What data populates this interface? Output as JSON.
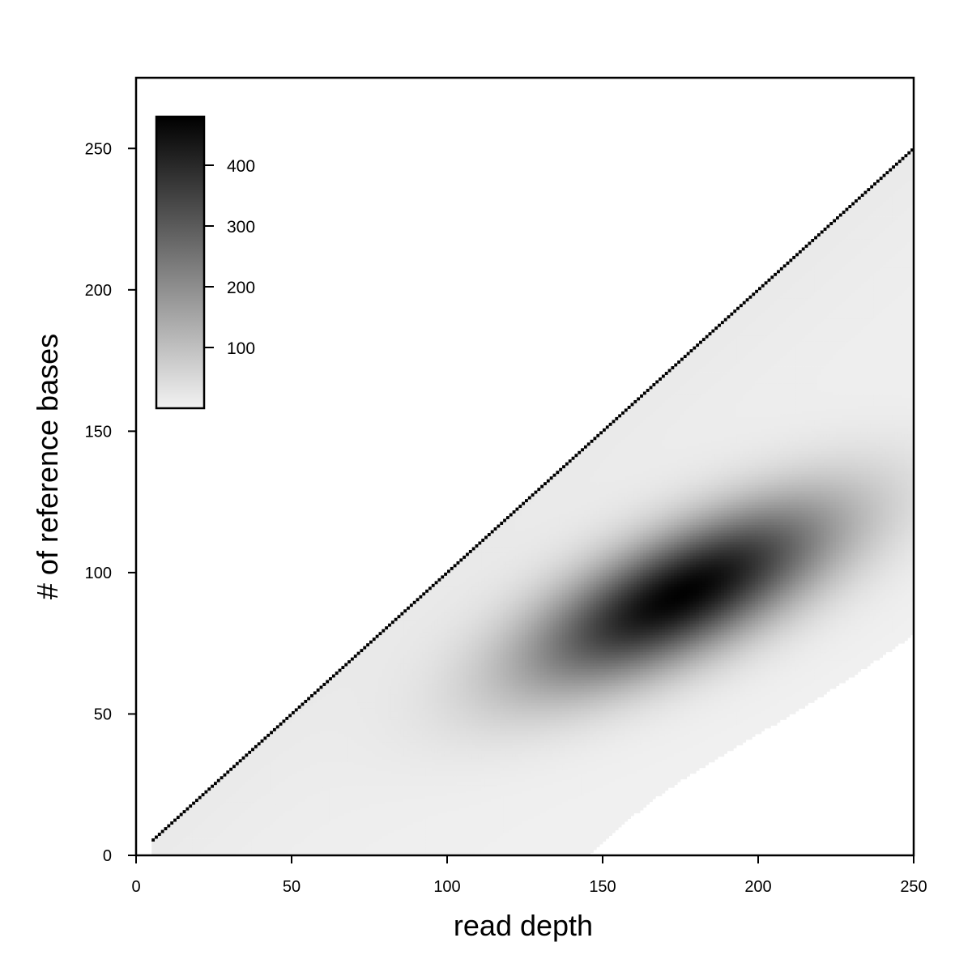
{
  "chart_data": {
    "type": "heatmap",
    "title": "",
    "xlabel": "read depth",
    "ylabel": "# of reference bases",
    "xlim": [
      0,
      250
    ],
    "ylim": [
      0,
      275
    ],
    "xticks": [
      0,
      50,
      100,
      150,
      200,
      250
    ],
    "yticks": [
      0,
      50,
      100,
      150,
      200,
      250
    ],
    "colormap": "greys",
    "color_min": "#f2f2f2",
    "color_max": "#000000",
    "colorbar": {
      "position": "top-left",
      "range": [
        0,
        480
      ],
      "ticks": [
        100,
        200,
        300,
        400
      ]
    },
    "features": [
      {
        "kind": "diagonal_line",
        "x_start": 5,
        "x_end": 250,
        "relation": "y = x",
        "count": 480
      },
      {
        "kind": "density_cluster",
        "center_x": 175,
        "center_y": 92,
        "spread_x": 38,
        "spread_y": 14,
        "peak_count": 470
      },
      {
        "kind": "diffuse_background",
        "region": "y <= x"
      }
    ],
    "grid": false,
    "legend": "none"
  }
}
